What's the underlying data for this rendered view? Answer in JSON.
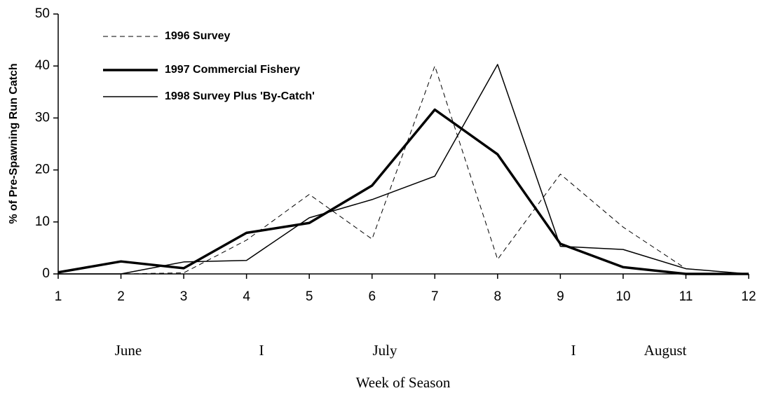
{
  "chart_data": {
    "type": "line",
    "y_label": "% of Pre-Spawning Run Catch",
    "x_label": "Week of Season",
    "month_labels": [
      "June",
      "I",
      "July",
      "I",
      "August"
    ],
    "x": [
      1,
      2,
      3,
      4,
      5,
      6,
      7,
      8,
      9,
      10,
      11,
      12
    ],
    "xlim": [
      1,
      12
    ],
    "xticks": [
      1,
      2,
      3,
      4,
      5,
      6,
      7,
      8,
      9,
      10,
      11,
      12
    ],
    "ylim": [
      0,
      50
    ],
    "yticks": [
      0,
      10,
      20,
      30,
      40,
      50
    ],
    "grid": false,
    "legend": "top-left",
    "series": [
      {
        "name": "1996 Survey",
        "color": "#000000",
        "style": "dashed",
        "width": 1,
        "values": [
          0,
          0,
          0.2,
          6.5,
          15.3,
          6.7,
          40,
          2.8,
          19.2,
          9,
          1,
          0
        ]
      },
      {
        "name": "1997 Commercial Fishery",
        "color": "#000000",
        "style": "solid",
        "width": 3.5,
        "values": [
          0.3,
          2.4,
          1.1,
          7.9,
          9.8,
          17,
          31.6,
          23,
          5.8,
          1.3,
          0,
          0
        ]
      },
      {
        "name": "1998 Survey Plus 'By-Catch'",
        "color": "#000000",
        "style": "solid",
        "width": 1.5,
        "values": [
          0,
          0,
          2.3,
          2.6,
          10.8,
          14.3,
          18.8,
          40.3,
          5.3,
          4.7,
          1,
          0
        ]
      }
    ]
  }
}
